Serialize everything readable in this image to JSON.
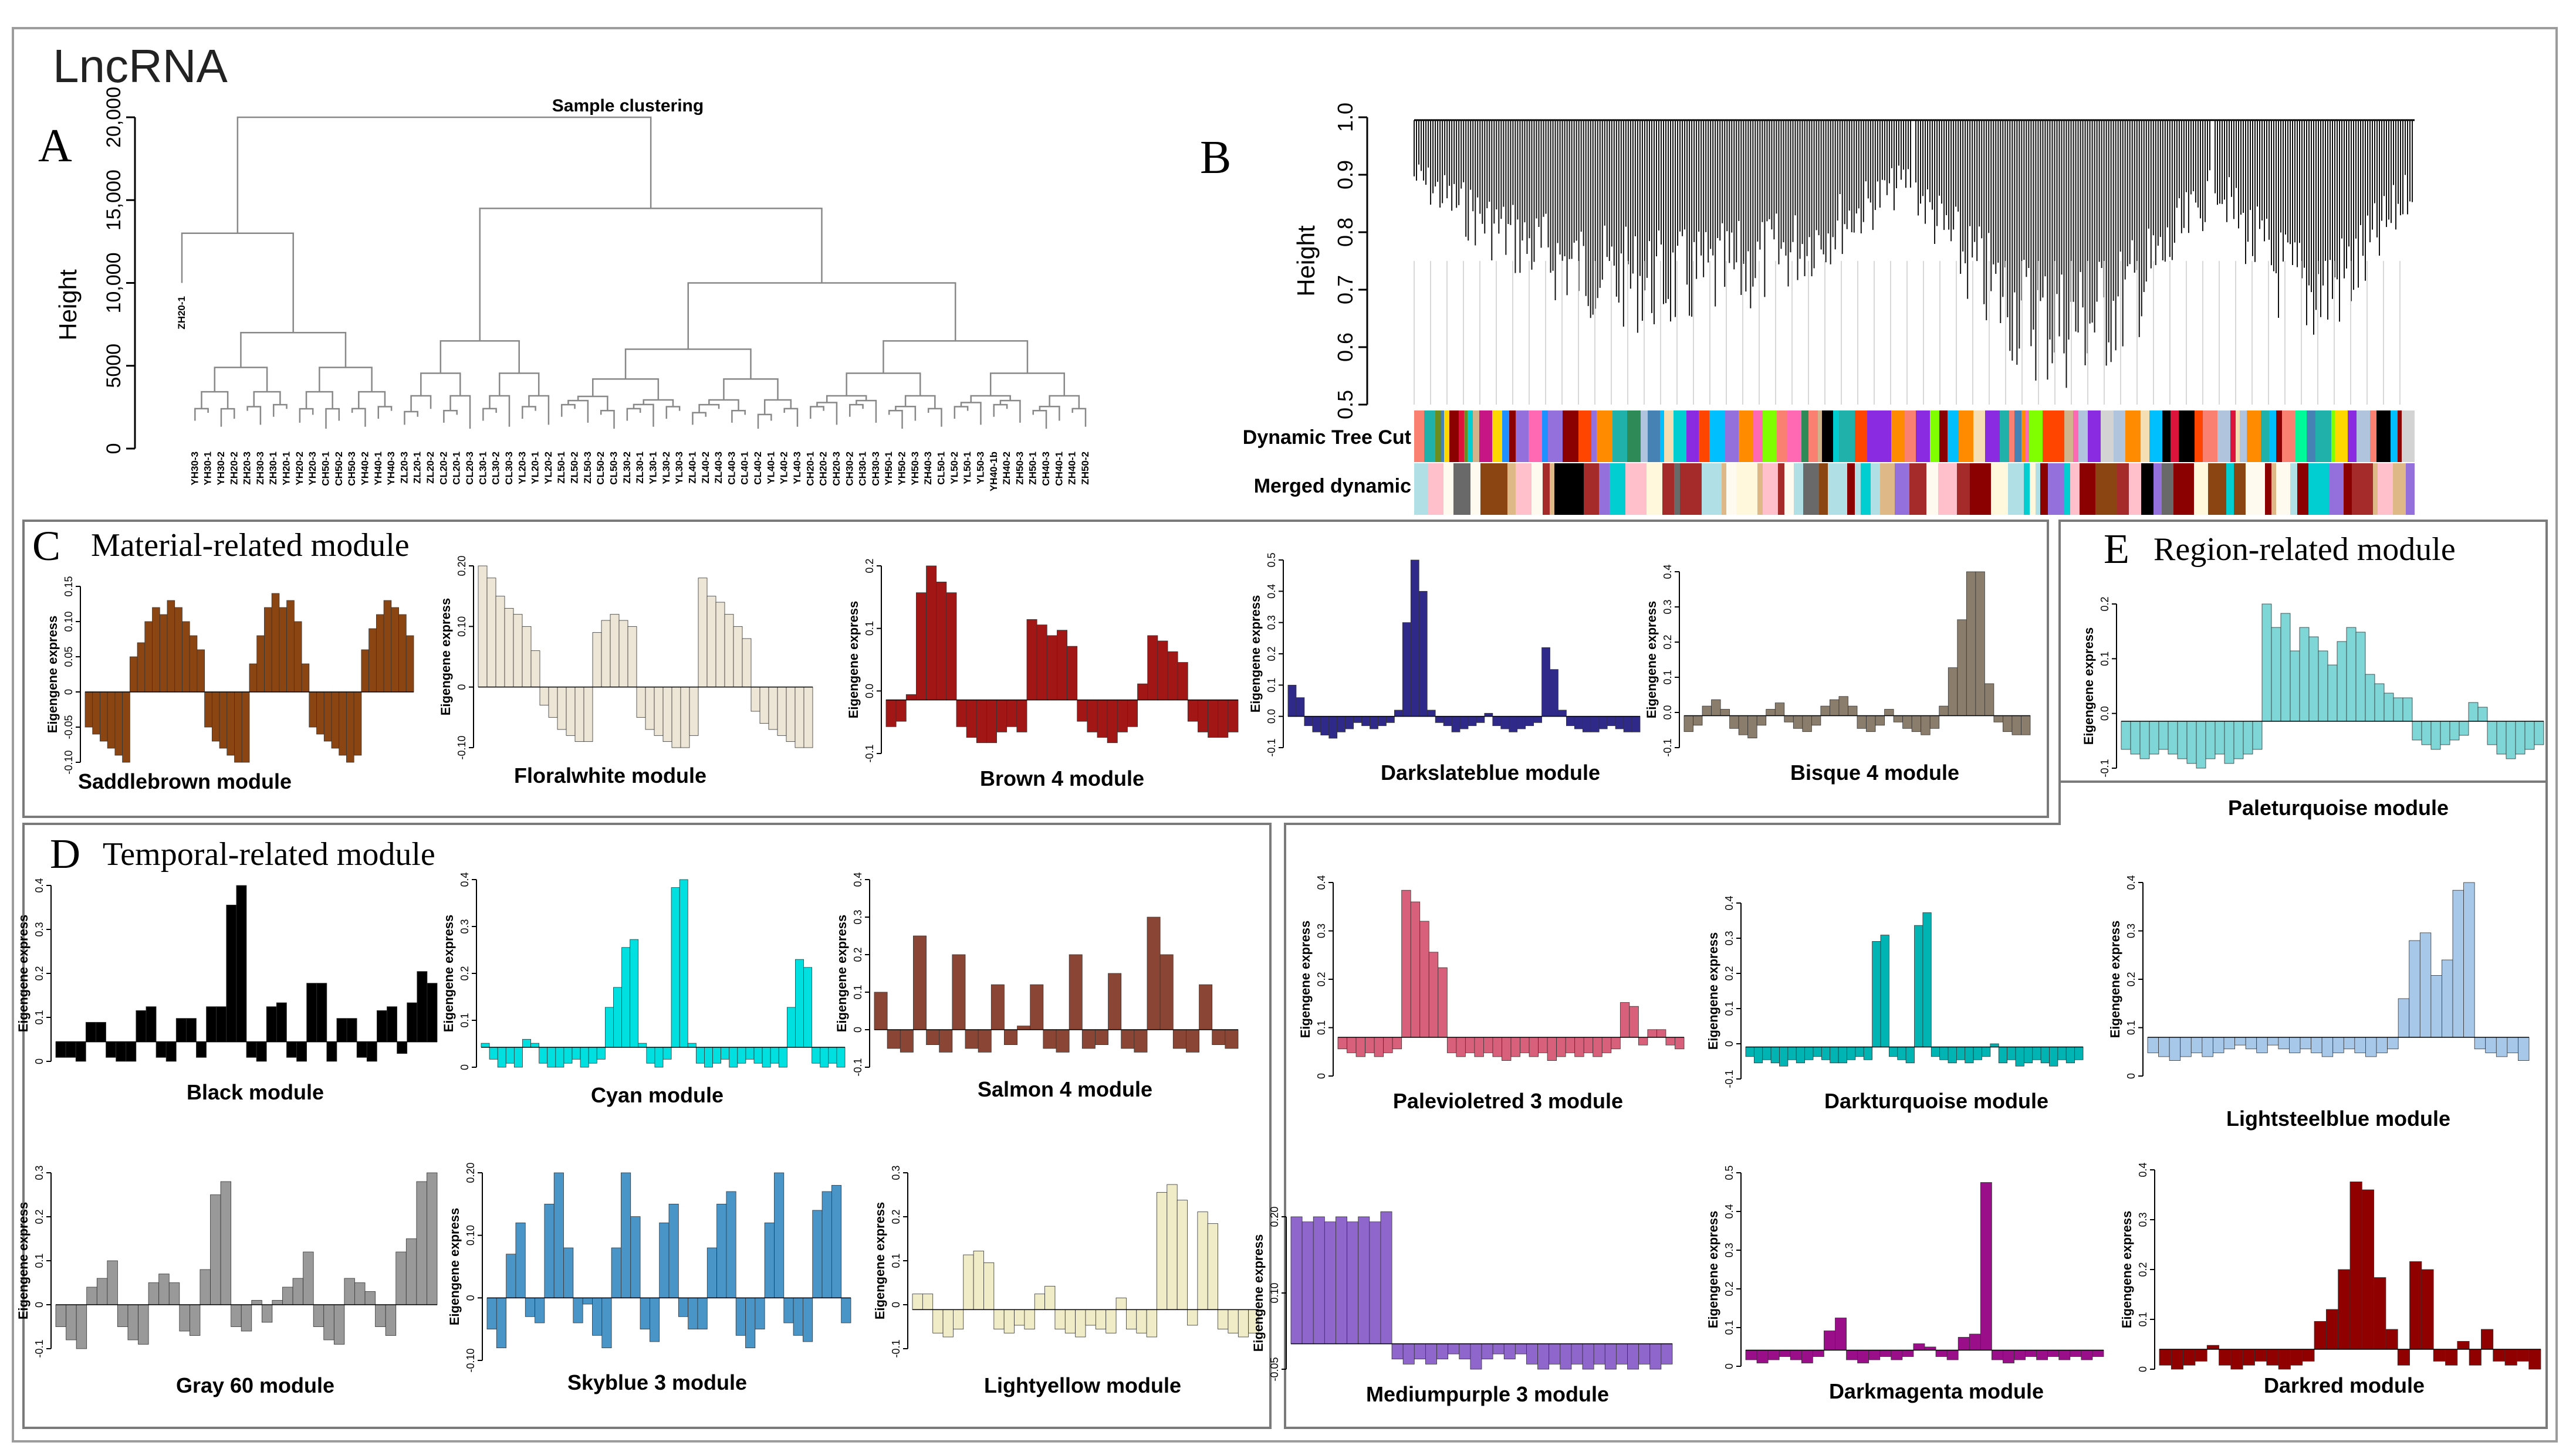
{
  "figure_title": "LncRNA",
  "panel_letters": {
    "A": "A",
    "B": "B",
    "C": "C",
    "D": "D",
    "E": "E"
  },
  "section_titles": {
    "C": "Material-related module",
    "D": "Temporal-related module",
    "E": "Region-related module"
  },
  "chart_data": [
    {
      "type": "dendrogram",
      "panel": "A",
      "title": "Sample clustering",
      "ylabel": "Height",
      "ylim": [
        0,
        20000
      ],
      "yticks": [
        0,
        5000,
        10000,
        15000,
        20000
      ],
      "ytick_labels": [
        "0",
        "5000",
        "10,000",
        "15,000",
        "20,000"
      ],
      "leaves": [
        "ZH20-1",
        "YH30-3",
        "YH30-1",
        "YH30-2",
        "ZH20-2",
        "ZH20-3",
        "ZH30-3",
        "ZH30-1",
        "YH20-1",
        "YH20-2",
        "YH20-3",
        "CH50-1",
        "CH50-2",
        "CH50-3",
        "YH40-2",
        "YH40-1",
        "YH40-3",
        "ZL20-3",
        "ZL20-1",
        "ZL20-2",
        "CL20-2",
        "CL20-1",
        "CL20-3",
        "CL30-1",
        "CL30-2",
        "CL30-3",
        "YL20-3",
        "YL20-1",
        "YL20-2",
        "ZL50-1",
        "ZL50-2",
        "ZL50-3",
        "CL50-2",
        "CL50-3",
        "ZL30-2",
        "ZL30-1",
        "YL30-1",
        "YL30-2",
        "YL30-3",
        "ZL40-1",
        "ZL40-2",
        "ZL40-3",
        "CL40-3",
        "CL40-1",
        "CL40-2",
        "YL40-1",
        "YL40-2",
        "YL40-3",
        "CH20-1",
        "CH20-2",
        "CH20-3",
        "CH30-2",
        "CH30-1",
        "CH30-3",
        "YH50-1",
        "YH50-2",
        "YH50-3",
        "ZH40-3",
        "CL50-1",
        "YL50-2",
        "YL50-1",
        "YL50-3",
        "YH40-1b",
        "ZH40-2",
        "ZH50-3",
        "ZH50-1",
        "CH40-3",
        "CH40-1",
        "ZH40-1",
        "ZH50-2"
      ]
    },
    {
      "type": "dendrogram",
      "panel": "B",
      "ylabel": "Height",
      "ylim": [
        0.5,
        1.0
      ],
      "yticks": [
        0.5,
        0.6,
        0.7,
        0.8,
        0.9,
        1.0
      ],
      "ytick_labels": [
        "0.5",
        "0.6",
        "0.7",
        "0.8",
        "0.9",
        "1.0"
      ],
      "track_labels": [
        "Dynamic Tree Cut",
        "Merged dynamic"
      ],
      "dynamic_colors": [
        "#6b8e23",
        "#d2b48c",
        "#8b0000",
        "#ff69b4",
        "#00ced1",
        "#ff8c00",
        "#9370db",
        "#2e8b57",
        "#00fa9a",
        "#fa8072",
        "#b0c4de",
        "#00bfff",
        "#8a2be2",
        "#ffd700",
        "#dc143c",
        "#20b2aa",
        "#f5deb3",
        "#7fff00",
        "#c71585",
        "#4682b4",
        "#d3d3d3",
        "#000000",
        "#ff4500",
        "#1e90ff"
      ],
      "merged_colors": [
        "#deb887",
        "#8b4513",
        "#fffaf0",
        "#fff8dc",
        "#00ced1",
        "#a52a2a",
        "#ffc0cb",
        "#696969",
        "#000000",
        "#8b0000",
        "#b0e0e6",
        "#9370db"
      ]
    },
    {
      "type": "bar",
      "panel": "C",
      "title": "Saddlebrown module",
      "ylabel": "Eigengene express",
      "color": "#8b4513",
      "ylim": [
        -0.1,
        0.15
      ],
      "ytick_labels": [
        "-0.10",
        "-0.05",
        "0",
        "0.05",
        "0.10",
        "0.15"
      ],
      "values": [
        -0.05,
        -0.06,
        -0.07,
        -0.08,
        -0.09,
        -0.1,
        0.05,
        0.07,
        0.1,
        0.12,
        0.11,
        0.13,
        0.12,
        0.1,
        0.08,
        0.06,
        -0.05,
        -0.07,
        -0.08,
        -0.09,
        -0.1,
        -0.1,
        0.04,
        0.08,
        0.12,
        0.14,
        0.12,
        0.13,
        0.1,
        0.04,
        -0.05,
        -0.06,
        -0.07,
        -0.08,
        -0.09,
        -0.1,
        -0.09,
        0.06,
        0.09,
        0.11,
        0.13,
        0.12,
        0.11,
        0.08
      ]
    },
    {
      "type": "bar",
      "panel": "C",
      "title": "Floralwhite module",
      "ylabel": "Eigengene express",
      "color": "#ede6d6",
      "ylim": [
        -0.1,
        0.2
      ],
      "ytick_labels": [
        "-0.10",
        "0",
        "0.10",
        "0.20"
      ],
      "values": [
        0.2,
        0.18,
        0.15,
        0.13,
        0.12,
        0.1,
        0.06,
        -0.03,
        -0.05,
        -0.07,
        -0.08,
        -0.09,
        -0.09,
        0.09,
        0.11,
        0.12,
        0.11,
        0.1,
        -0.05,
        -0.07,
        -0.08,
        -0.09,
        -0.1,
        -0.1,
        -0.08,
        0.18,
        0.15,
        0.14,
        0.12,
        0.1,
        0.08,
        -0.04,
        -0.06,
        -0.07,
        -0.08,
        -0.09,
        -0.1,
        -0.1
      ]
    },
    {
      "type": "bar",
      "panel": "C",
      "title": "Brown 4 module",
      "ylabel": "Eigengene express",
      "color": "#a31616",
      "ylim": [
        -0.1,
        0.25
      ],
      "ytick_labels": [
        "-0.1",
        "0.0",
        "0.1",
        "0.2"
      ],
      "values": [
        -0.05,
        -0.04,
        0.01,
        0.2,
        0.25,
        0.22,
        0.2,
        -0.05,
        -0.07,
        -0.08,
        -0.08,
        -0.06,
        -0.05,
        -0.06,
        0.15,
        0.14,
        0.12,
        0.13,
        0.1,
        -0.04,
        -0.06,
        -0.07,
        -0.08,
        -0.06,
        -0.05,
        0.03,
        0.12,
        0.11,
        0.09,
        0.07,
        -0.04,
        -0.06,
        -0.07,
        -0.07,
        -0.06
      ]
    },
    {
      "type": "bar",
      "panel": "C",
      "title": "Darkslateblue module",
      "ylabel": "Eigengene express",
      "color": "#2f2a8a",
      "ylim": [
        -0.1,
        0.5
      ],
      "ytick_labels": [
        "-0.1",
        "0.0",
        "0.1",
        "0.2",
        "0.3",
        "0.4",
        "0.5"
      ],
      "values": [
        0.1,
        0.06,
        -0.03,
        -0.05,
        -0.06,
        -0.07,
        -0.05,
        -0.04,
        -0.02,
        -0.03,
        -0.04,
        -0.03,
        -0.02,
        0.02,
        0.3,
        0.5,
        0.4,
        0.02,
        -0.02,
        -0.03,
        -0.05,
        -0.04,
        -0.03,
        -0.02,
        0.01,
        -0.03,
        -0.04,
        -0.05,
        -0.04,
        -0.03,
        -0.02,
        0.22,
        0.15,
        0.02,
        -0.03,
        -0.04,
        -0.05,
        -0.05,
        -0.04,
        -0.03,
        -0.04,
        -0.05,
        -0.05
      ]
    },
    {
      "type": "bar",
      "panel": "C",
      "title": "Bisque 4 module",
      "ylabel": "Eigengene express",
      "color": "#8b7d6b",
      "ylim": [
        -0.1,
        0.45
      ],
      "ytick_labels": [
        "-0.1",
        "0.0",
        "0.1",
        "0.2",
        "0.3",
        "0.4"
      ],
      "values": [
        -0.05,
        -0.03,
        0.03,
        0.05,
        0.02,
        -0.04,
        -0.06,
        -0.07,
        -0.03,
        0.02,
        0.04,
        -0.02,
        -0.04,
        -0.05,
        -0.03,
        0.03,
        0.05,
        0.06,
        0.03,
        -0.04,
        -0.05,
        -0.03,
        0.02,
        -0.02,
        -0.04,
        -0.05,
        -0.06,
        -0.04,
        0.03,
        0.15,
        0.3,
        0.45,
        0.45,
        0.1,
        -0.02,
        -0.05,
        -0.06,
        -0.06
      ]
    },
    {
      "type": "bar",
      "panel": "E",
      "title": "Paleturquoise module",
      "ylabel": "Eigengene express",
      "color": "#7fd6d6",
      "ylim": [
        -0.1,
        0.25
      ],
      "ytick_labels": [
        "-0.1",
        "0.0",
        "0.1",
        "0.2"
      ],
      "values": [
        -0.06,
        -0.07,
        -0.08,
        -0.07,
        -0.06,
        -0.07,
        -0.08,
        -0.09,
        -0.1,
        -0.08,
        -0.07,
        -0.09,
        -0.08,
        -0.07,
        -0.06,
        0.25,
        0.2,
        0.23,
        0.15,
        0.2,
        0.18,
        0.15,
        0.12,
        0.17,
        0.2,
        0.19,
        0.1,
        0.08,
        0.06,
        0.05,
        0.05,
        -0.04,
        -0.05,
        -0.06,
        -0.05,
        -0.04,
        -0.03,
        0.04,
        0.03,
        -0.05,
        -0.07,
        -0.08,
        -0.07,
        -0.06,
        -0.05
      ]
    },
    {
      "type": "bar",
      "panel": "D",
      "title": "Black module",
      "ylabel": "Eigengene express",
      "color": "#000000",
      "ylim": [
        -0.05,
        0.4
      ],
      "ytick_labels": [
        "0",
        "0.1",
        "0.2",
        "0.3",
        "0.4"
      ],
      "values": [
        -0.04,
        -0.04,
        -0.05,
        0.05,
        0.05,
        -0.04,
        -0.05,
        -0.05,
        0.08,
        0.09,
        -0.04,
        -0.05,
        0.06,
        0.06,
        -0.04,
        0.09,
        0.09,
        0.35,
        0.4,
        -0.04,
        -0.05,
        0.09,
        0.1,
        -0.04,
        -0.05,
        0.15,
        0.15,
        -0.05,
        0.06,
        0.06,
        -0.04,
        -0.05,
        0.08,
        0.09,
        -0.03,
        0.1,
        0.18,
        0.15
      ]
    },
    {
      "type": "bar",
      "panel": "D",
      "title": "Cyan module",
      "ylabel": "Eigengene express",
      "color": "#00e0e0",
      "ylim": [
        -0.05,
        0.42
      ],
      "ytick_labels": [
        "0",
        "0.1",
        "0.2",
        "0.3",
        "0.4"
      ],
      "values": [
        0.01,
        -0.03,
        -0.05,
        -0.04,
        -0.05,
        0.02,
        0.01,
        -0.04,
        -0.05,
        -0.05,
        -0.04,
        -0.03,
        -0.05,
        -0.04,
        -0.03,
        0.1,
        0.15,
        0.25,
        0.27,
        0.01,
        -0.04,
        -0.05,
        -0.03,
        0.4,
        0.42,
        0.01,
        -0.04,
        -0.05,
        -0.04,
        -0.03,
        -0.05,
        -0.04,
        -0.03,
        -0.04,
        -0.05,
        -0.04,
        -0.05,
        0.1,
        0.22,
        0.2,
        -0.04,
        -0.05,
        -0.04,
        -0.05
      ]
    },
    {
      "type": "bar",
      "panel": "D",
      "title": "Salmon 4 module",
      "ylabel": "Eigengene express",
      "color": "#8b4534",
      "ylim": [
        -0.1,
        0.4
      ],
      "ytick_labels": [
        "-0.1",
        "0",
        "0.1",
        "0.2",
        "0.3",
        "0.4"
      ],
      "values": [
        0.1,
        -0.05,
        -0.06,
        0.25,
        -0.04,
        -0.06,
        0.2,
        -0.05,
        -0.06,
        0.12,
        -0.04,
        0.01,
        0.12,
        -0.05,
        -0.06,
        0.2,
        -0.05,
        -0.04,
        0.15,
        -0.05,
        -0.06,
        0.3,
        0.2,
        -0.05,
        -0.06,
        0.12,
        -0.04,
        -0.05
      ]
    },
    {
      "type": "bar",
      "panel": "D",
      "title": "Gray 60 module",
      "ylabel": "Eigengene express",
      "color": "#999999",
      "ylim": [
        -0.1,
        0.3
      ],
      "ytick_labels": [
        "-0.1",
        "0",
        "0.1",
        "0.2",
        "0.3"
      ],
      "values": [
        -0.05,
        -0.08,
        -0.1,
        0.04,
        0.06,
        0.1,
        -0.05,
        -0.08,
        -0.09,
        0.05,
        0.07,
        0.05,
        -0.06,
        -0.07,
        0.08,
        0.25,
        0.28,
        -0.05,
        -0.06,
        0.01,
        -0.04,
        0.01,
        0.04,
        0.06,
        0.12,
        -0.05,
        -0.08,
        -0.09,
        0.06,
        0.05,
        0.03,
        -0.05,
        -0.07,
        0.12,
        0.15,
        0.28,
        0.3
      ]
    },
    {
      "type": "bar",
      "panel": "D",
      "title": "Skyblue 3 module",
      "ylabel": "Eigengene express",
      "color": "#4a95c8",
      "ylim": [
        -0.1,
        0.2
      ],
      "ytick_labels": [
        "-0.10",
        "0",
        "0.10",
        "0.20"
      ],
      "values": [
        -0.05,
        -0.08,
        0.07,
        0.12,
        -0.03,
        -0.04,
        0.15,
        0.2,
        0.08,
        -0.04,
        -0.01,
        -0.06,
        -0.08,
        0.08,
        0.2,
        0.13,
        -0.05,
        -0.07,
        0.12,
        0.15,
        -0.03,
        -0.05,
        -0.05,
        0.08,
        0.15,
        0.17,
        -0.06,
        -0.08,
        -0.05,
        0.12,
        0.2,
        -0.04,
        -0.06,
        -0.07,
        0.14,
        0.17,
        0.18,
        -0.04
      ]
    },
    {
      "type": "bar",
      "panel": "D",
      "title": "Lightyellow module",
      "ylabel": "Eigengene express",
      "color": "#f0ecc8",
      "ylim": [
        -0.1,
        0.35
      ],
      "ytick_labels": [
        "-0.1",
        "0",
        "0.1",
        "0.2",
        "0.3"
      ],
      "values": [
        0.04,
        0.04,
        -0.06,
        -0.07,
        -0.05,
        0.14,
        0.15,
        0.12,
        -0.05,
        -0.06,
        -0.04,
        -0.05,
        0.04,
        0.06,
        -0.05,
        -0.06,
        -0.07,
        -0.04,
        -0.05,
        -0.06,
        0.03,
        -0.05,
        -0.06,
        -0.07,
        0.3,
        0.32,
        0.28,
        -0.04,
        0.25,
        0.22,
        -0.05,
        -0.06,
        -0.07,
        -0.06
      ]
    },
    {
      "type": "bar",
      "panel": "E",
      "title": "Palevioletred 3 module",
      "ylabel": "Eigengene express",
      "color": "#d9607a",
      "ylim": [
        -0.1,
        0.4
      ],
      "ytick_labels": [
        "0",
        "0.1",
        "0.2",
        "0.3",
        "0.4"
      ],
      "values": [
        -0.03,
        -0.04,
        -0.05,
        -0.04,
        -0.05,
        -0.04,
        -0.03,
        0.38,
        0.35,
        0.3,
        0.22,
        0.18,
        -0.04,
        -0.05,
        -0.04,
        -0.05,
        -0.04,
        -0.05,
        -0.06,
        -0.05,
        -0.04,
        -0.05,
        -0.04,
        -0.06,
        -0.05,
        -0.04,
        -0.05,
        -0.04,
        -0.05,
        -0.04,
        -0.03,
        0.09,
        0.08,
        -0.02,
        0.02,
        0.02,
        -0.02,
        -0.03
      ]
    },
    {
      "type": "bar",
      "panel": "E",
      "title": "Darkturquoise module",
      "ylabel": "Eigengene express",
      "color": "#00b4b4",
      "ylim": [
        -0.1,
        0.45
      ],
      "ytick_labels": [
        "-0.1",
        "0",
        "0.1",
        "0.2",
        "0.3",
        "0.4"
      ],
      "values": [
        -0.03,
        -0.05,
        -0.04,
        -0.05,
        -0.06,
        -0.04,
        -0.05,
        -0.04,
        -0.03,
        -0.04,
        -0.05,
        -0.05,
        -0.04,
        -0.03,
        -0.04,
        0.33,
        0.35,
        -0.03,
        -0.04,
        -0.05,
        0.38,
        0.42,
        -0.03,
        -0.04,
        -0.05,
        -0.04,
        -0.05,
        -0.04,
        -0.03,
        0.01,
        -0.05,
        -0.04,
        -0.06,
        -0.05,
        -0.04,
        -0.05,
        -0.06,
        -0.04,
        -0.05,
        -0.04
      ]
    },
    {
      "type": "bar",
      "panel": "E",
      "title": "Lightsteelblue module",
      "ylabel": "Eigengene express",
      "color": "#a8c8ea",
      "ylim": [
        -0.1,
        0.4
      ],
      "ytick_labels": [
        "0",
        "0.1",
        "0.2",
        "0.3",
        "0.4"
      ],
      "values": [
        -0.04,
        -0.05,
        -0.06,
        -0.05,
        -0.04,
        -0.05,
        -0.04,
        -0.03,
        -0.02,
        -0.03,
        -0.04,
        -0.02,
        -0.03,
        -0.04,
        -0.03,
        -0.04,
        -0.05,
        -0.04,
        -0.03,
        -0.04,
        -0.05,
        -0.04,
        -0.03,
        0.1,
        0.25,
        0.27,
        0.16,
        0.2,
        0.38,
        0.4,
        -0.03,
        -0.04,
        -0.05,
        -0.04,
        -0.06
      ]
    },
    {
      "type": "bar",
      "panel": "D",
      "title": "Mediumpurple 3 module",
      "ylabel": "Eigengene express",
      "color": "#8f66cc",
      "ylim": [
        -0.05,
        0.25
      ],
      "ytick_labels": [
        "-0.05",
        "0.10",
        "0.20"
      ],
      "values": [
        0.25,
        0.24,
        0.25,
        0.24,
        0.25,
        0.24,
        0.25,
        0.24,
        0.26,
        -0.03,
        -0.04,
        -0.03,
        -0.04,
        -0.03,
        -0.02,
        -0.03,
        -0.05,
        -0.03,
        -0.02,
        -0.03,
        -0.02,
        -0.04,
        -0.05,
        -0.04,
        -0.05,
        -0.04,
        -0.05,
        -0.04,
        -0.05,
        -0.04,
        -0.05,
        -0.04,
        -0.05,
        -0.04
      ]
    },
    {
      "type": "bar",
      "panel": "E",
      "title": "Darkmagenta module",
      "ylabel": "Eigengene express",
      "color": "#9b0e8a",
      "ylim": [
        -0.05,
        0.55
      ],
      "ytick_labels": [
        "0",
        "0.1",
        "0.2",
        "0.3",
        "0.4",
        "0.5"
      ],
      "values": [
        -0.03,
        -0.04,
        -0.03,
        -0.02,
        -0.03,
        -0.04,
        -0.02,
        0.06,
        0.1,
        -0.03,
        -0.04,
        -0.03,
        -0.02,
        -0.03,
        -0.02,
        0.02,
        0.01,
        -0.02,
        -0.03,
        0.04,
        0.05,
        0.52,
        -0.03,
        -0.04,
        -0.03,
        -0.02,
        -0.03,
        -0.02,
        -0.03,
        -0.02,
        -0.03,
        -0.02
      ]
    },
    {
      "type": "bar",
      "panel": "E",
      "title": "Darkred module",
      "ylabel": "Eigengene express",
      "color": "#900000",
      "ylim": [
        -0.05,
        0.45
      ],
      "ytick_labels": [
        "0",
        "0.1",
        "0.2",
        "0.3",
        "0.4"
      ],
      "values": [
        -0.04,
        -0.05,
        -0.04,
        -0.03,
        0.01,
        -0.04,
        -0.05,
        -0.04,
        -0.03,
        -0.04,
        -0.05,
        -0.04,
        -0.03,
        0.07,
        0.1,
        0.2,
        0.42,
        0.4,
        0.18,
        0.05,
        -0.04,
        0.22,
        0.2,
        -0.03,
        -0.04,
        0.02,
        -0.04,
        0.05,
        -0.03,
        -0.04,
        -0.03,
        -0.05
      ]
    }
  ]
}
